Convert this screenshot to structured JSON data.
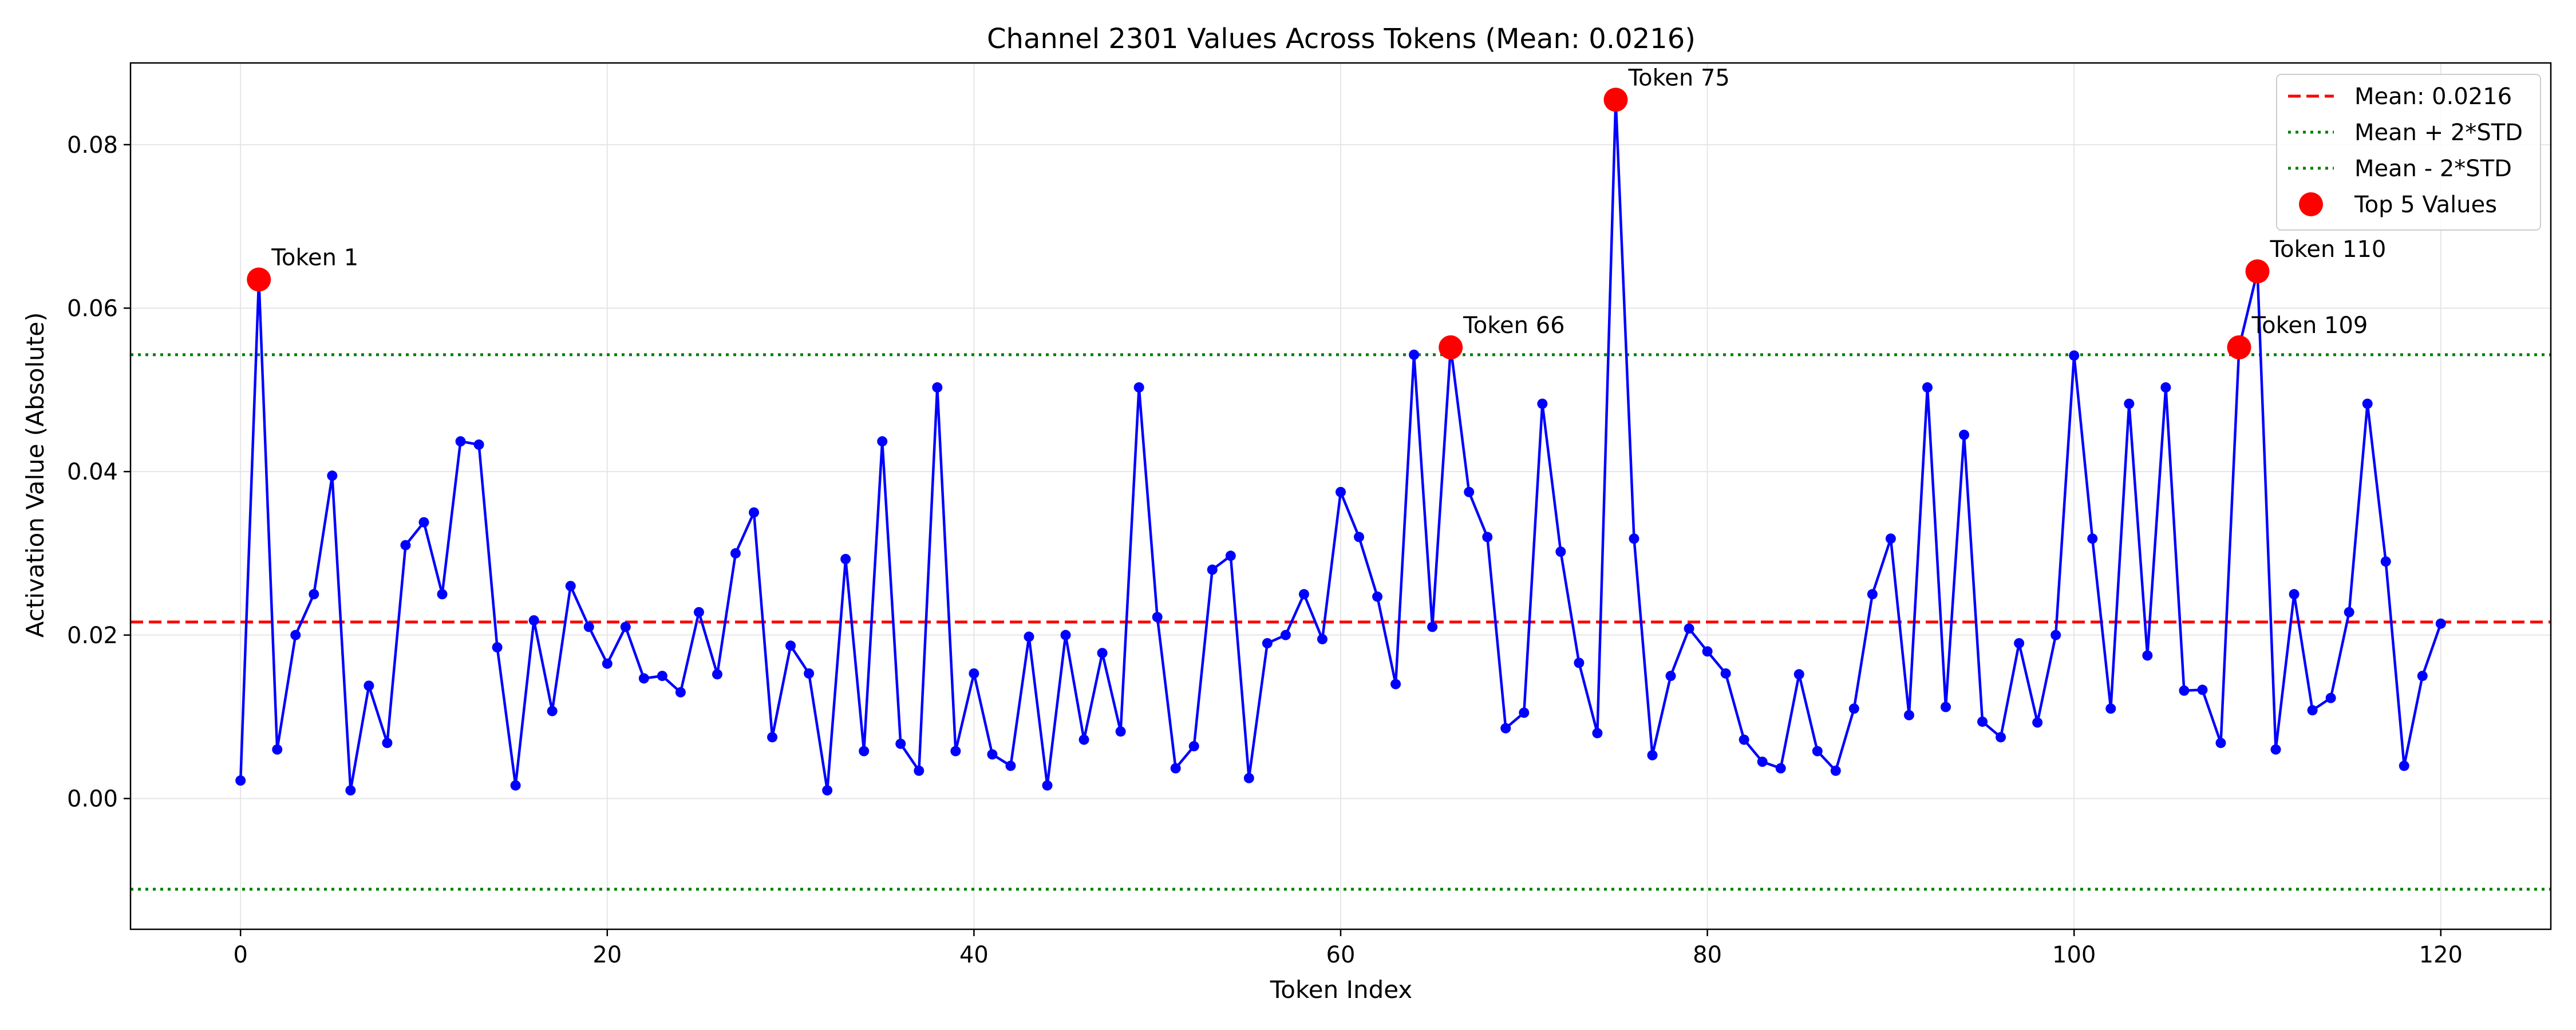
{
  "chart_data": {
    "type": "line",
    "title": "Channel 2301 Values Across Tokens (Mean: 0.0216)",
    "xlabel": "Token Index",
    "ylabel": "Activation Value (Absolute)",
    "xlim": [
      -6,
      126
    ],
    "ylim": [
      -0.016,
      0.09
    ],
    "xticks": [
      0,
      20,
      40,
      60,
      80,
      100,
      120
    ],
    "yticks": [
      0.0,
      0.02,
      0.04,
      0.06,
      0.08
    ],
    "ytick_labels": [
      "0.00",
      "0.02",
      "0.04",
      "0.06",
      "0.08"
    ],
    "grid": true,
    "legend_position": "top-right",
    "colors": {
      "series": "#0000ff",
      "mean": "#ff0000",
      "std": "#008000",
      "top": "#ff0000"
    },
    "series": [
      {
        "name": "",
        "x": [
          0,
          1,
          2,
          3,
          4,
          5,
          6,
          7,
          8,
          9,
          10,
          11,
          12,
          13,
          14,
          15,
          16,
          17,
          18,
          19,
          20,
          21,
          22,
          23,
          24,
          25,
          26,
          27,
          28,
          29,
          30,
          31,
          32,
          33,
          34,
          35,
          36,
          37,
          38,
          39,
          40,
          41,
          42,
          43,
          44,
          45,
          46,
          47,
          48,
          49,
          50,
          51,
          52,
          53,
          54,
          55,
          56,
          57,
          58,
          59,
          60,
          61,
          62,
          63,
          64,
          65,
          66,
          67,
          68,
          69,
          70,
          71,
          72,
          73,
          74,
          75,
          76,
          77,
          78,
          79,
          80,
          81,
          82,
          83,
          84,
          85,
          86,
          87,
          88,
          89,
          90,
          91,
          92,
          93,
          94,
          95,
          96,
          97,
          98,
          99,
          100,
          101,
          102,
          103,
          104,
          105,
          106,
          107,
          108,
          109,
          110,
          111,
          112,
          113,
          114,
          115,
          116,
          117,
          118,
          119,
          120
        ],
        "values": [
          0.0022,
          0.0635,
          0.006,
          0.02,
          0.025,
          0.0395,
          0.001,
          0.0138,
          0.0068,
          0.031,
          0.0338,
          0.025,
          0.0437,
          0.0433,
          0.0185,
          0.0016,
          0.0218,
          0.0107,
          0.026,
          0.021,
          0.0165,
          0.021,
          0.0147,
          0.015,
          0.013,
          0.0228,
          0.0152,
          0.03,
          0.035,
          0.0075,
          0.0187,
          0.0153,
          0.001,
          0.0293,
          0.0058,
          0.0437,
          0.0067,
          0.0034,
          0.0503,
          0.0058,
          0.0153,
          0.0054,
          0.004,
          0.0198,
          0.0016,
          0.02,
          0.0072,
          0.0178,
          0.0082,
          0.0503,
          0.0222,
          0.0037,
          0.0064,
          0.028,
          0.0297,
          0.0025,
          0.019,
          0.02,
          0.025,
          0.0195,
          0.0375,
          0.032,
          0.0247,
          0.014,
          0.0543,
          0.021,
          0.0552,
          0.0375,
          0.032,
          0.0086,
          0.0105,
          0.0483,
          0.0302,
          0.0166,
          0.008,
          0.0855,
          0.0318,
          0.0053,
          0.015,
          0.0208,
          0.018,
          0.0153,
          0.0072,
          0.0045,
          0.0037,
          0.0152,
          0.0058,
          0.0034,
          0.011,
          0.025,
          0.0318,
          0.0102,
          0.0503,
          0.0112,
          0.0445,
          0.0094,
          0.0075,
          0.019,
          0.0093,
          0.02,
          0.0542,
          0.0318,
          0.011,
          0.0483,
          0.0175,
          0.0503,
          0.0132,
          0.0133,
          0.0068,
          0.0552,
          0.0645,
          0.006,
          0.025,
          0.0108,
          0.0123,
          0.0228,
          0.0483,
          0.029,
          0.004,
          0.015,
          0.0214
        ]
      }
    ],
    "mean_line": {
      "value": 0.0216,
      "label": "Mean: 0.0216"
    },
    "upper_line": {
      "value": 0.0543,
      "label": "Mean + 2*STD"
    },
    "lower_line": {
      "value": -0.0111,
      "label": "Mean - 2*STD"
    },
    "top_values": {
      "label": "Top 5 Values",
      "points": [
        {
          "x": 1,
          "y": 0.0635,
          "label": "Token 1"
        },
        {
          "x": 66,
          "y": 0.0552,
          "label": "Token 66"
        },
        {
          "x": 75,
          "y": 0.0855,
          "label": "Token 75"
        },
        {
          "x": 109,
          "y": 0.0552,
          "label": "Token 109"
        },
        {
          "x": 110,
          "y": 0.0645,
          "label": "Token 110"
        }
      ]
    }
  }
}
